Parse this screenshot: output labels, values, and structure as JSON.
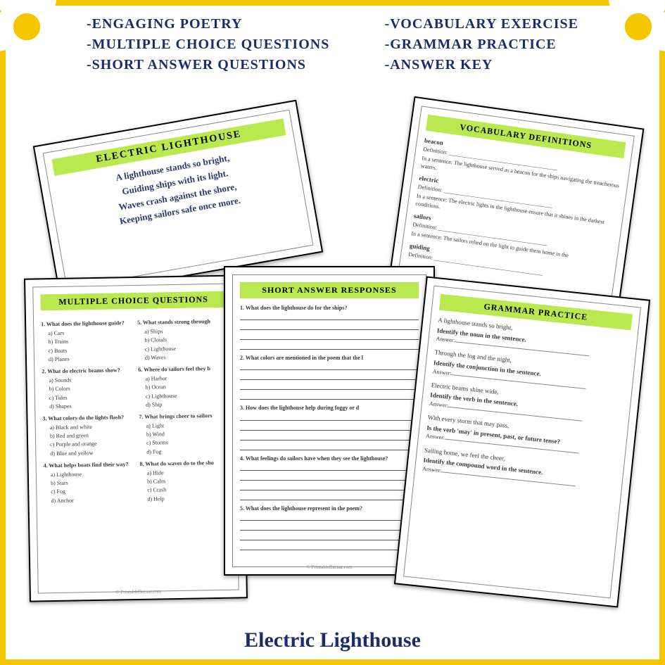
{
  "colors": {
    "border": "#f5c500",
    "accent": "#1a2d6b",
    "banner": "#b9e84f",
    "petal": "#ffffff",
    "center": "#f5c500"
  },
  "features": {
    "left": [
      "-ENGAGING  POETRY",
      "-MULTIPLE CHOICE QUESTIONS",
      "-SHORT ANSWER QUESTIONS"
    ],
    "right": [
      "-VOCABULARY EXERCISE",
      "-GRAMMAR PRACTICE",
      "-ANSWER KEY"
    ]
  },
  "title": "Electric Lighthouse",
  "footer": "© PrintableBazaar.com",
  "poem": {
    "header": "ELECTRIC LIGHTHOUSE",
    "lines": [
      "A lighthouse stands so bright,",
      "Guiding ships with its light.",
      "Waves crash against the shore,",
      "Keeping sailors safe once more."
    ]
  },
  "vocab": {
    "header": "VOCABULARY DEFINITIONS",
    "items": [
      {
        "word": "beacon",
        "def": "Definition: _______________________________________",
        "sent": "In a sentence: The lighthouse served as a beacon for the ships navigating the treacherous waters."
      },
      {
        "word": "electric",
        "def": "Definition: _______________________________________",
        "sent": "In a sentence: The electric lights in the lighthouse ensure that it shines in the darkest conditions."
      },
      {
        "word": "sailors",
        "def": "Definition: _______________________________________",
        "sent": "In a sentence: The sailors relied on the light to guide them home in the"
      },
      {
        "word": "guiding",
        "def": "Definition: _______________________________________",
        "sent": ""
      }
    ]
  },
  "mc": {
    "header": "MULTIPLE CHOICE QUESTIONS",
    "left": [
      {
        "q": "1. What does the lighthouse guide?",
        "opts": [
          "a)  Cars",
          "b)  Trains",
          "c)  Boats",
          "d)  Planes"
        ]
      },
      {
        "q": "2. What do electric beams show?",
        "opts": [
          "a)  Sounds",
          "b)  Colors",
          "c)  Tides",
          "d)  Shapes"
        ]
      },
      {
        "q": "3. What colors do the lights flash?",
        "opts": [
          "a)  Black and white",
          "b)  Red and green",
          "c)  Purple and orange",
          "d)  Blue and yellow"
        ]
      },
      {
        "q": "4. What helps boats find their way?",
        "opts": [
          "a)  Lighthouse",
          "b)  Stars",
          "c)  Fog",
          "d)  Anchor"
        ]
      }
    ],
    "right": [
      {
        "q": "5. What stands strong through",
        "opts": [
          "a)  Ships",
          "b)  Clouds",
          "c)  Lighthouse",
          "d)  Waves"
        ]
      },
      {
        "q": "6. Where do sailors feel they b",
        "opts": [
          "a)  Harbor",
          "b)  Ocean",
          "c)  Lighthouse",
          "d)  Ship"
        ]
      },
      {
        "q": "7. What brings cheer to sailors",
        "opts": [
          "a)  Light",
          "b)  Wind",
          "c)  Storms",
          "d)  Fog"
        ]
      },
      {
        "q": "8. What do waves do to the sho",
        "opts": [
          "a)  Hide",
          "b)  Calm",
          "c)  Crash",
          "d)  Help"
        ]
      }
    ]
  },
  "short": {
    "header": "SHORT ANSWER RESPONSES",
    "questions": [
      "1. What does the lighthouse do for the ships?",
      "2. What colors are mentioned in the poem that the l",
      "3. How does the lighthouse help during foggy or d",
      "4. What feelings do sailors have when they see the lighthouse?",
      "5. What does the lighthouse represent in the poem?"
    ]
  },
  "grammar": {
    "header": "GRAMMAR PRACTICE",
    "items": [
      {
        "line": "A lighthouse stands so bright,",
        "task": "Identify the noun in the sentence.",
        "ans": "Answer:"
      },
      {
        "line": "Through the fog and the night,",
        "task": "Identify the conjunction in the sentence.",
        "ans": "Answer:"
      },
      {
        "line": "Electric beams shine wide,",
        "task": "Identify the verb in the sentence.",
        "ans": "Answer:"
      },
      {
        "line": "With every storm that may pass,",
        "task": "Is the verb 'may' in present, past, or future tense?",
        "ans": "Answer:"
      },
      {
        "line": "Sailing home, we feel the cheer,",
        "task": "Identify the compound word in the sentence.",
        "ans": "Answer:"
      }
    ]
  }
}
